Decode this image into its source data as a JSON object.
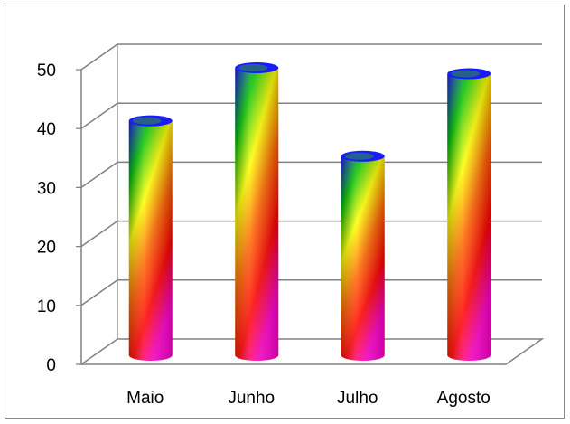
{
  "chart_data": {
    "type": "bar",
    "style": "3d-cylinder",
    "categories": [
      "Maio",
      "Junho",
      "Julho",
      "Agosto"
    ],
    "values": [
      41,
      50,
      35,
      49
    ],
    "ylim": [
      0,
      50
    ],
    "yticks": [
      "0",
      "10",
      "20",
      "30",
      "40",
      "50"
    ],
    "grid": true,
    "legend": "none",
    "fill": "rainbow-gradient"
  },
  "colors": {
    "gradient": [
      "#1a1aff",
      "#00c000",
      "#ffff00",
      "#ff6600",
      "#ff0000",
      "#ff00cc"
    ],
    "grid": "#808080",
    "frame": "#888888"
  }
}
